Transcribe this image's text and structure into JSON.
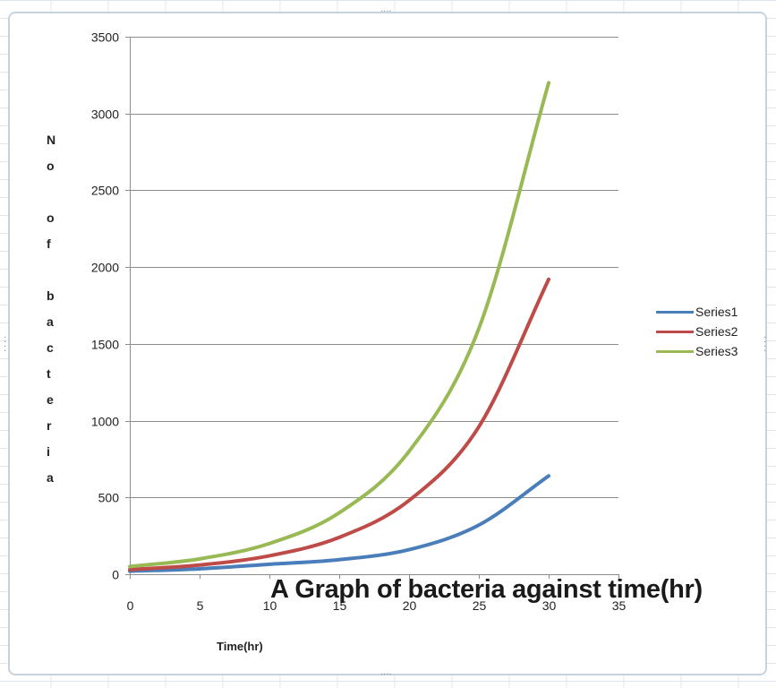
{
  "chart_data": {
    "type": "line",
    "title": "A Graph of bacteria against time(hr)",
    "xlabel": "Time(hr)",
    "ylabel": "No of bacteria",
    "xlim": [
      0,
      35
    ],
    "ylim": [
      0,
      3500
    ],
    "xticks": [
      "0",
      "5",
      "10",
      "15",
      "20",
      "25",
      "30",
      "35"
    ],
    "yticks": [
      "0",
      "500",
      "1000",
      "1500",
      "2000",
      "2500",
      "3000",
      "3500"
    ],
    "grid": "horizontal",
    "legend_position": "right",
    "x": [
      0,
      5,
      10,
      15,
      20,
      25,
      30
    ],
    "series": [
      {
        "name": "Series1",
        "color": "#4a7ebb",
        "values": [
          20,
          35,
          65,
          95,
          160,
          320,
          640
        ]
      },
      {
        "name": "Series2",
        "color": "#be4b48",
        "values": [
          30,
          60,
          120,
          240,
          480,
          960,
          1920
        ]
      },
      {
        "name": "Series3",
        "color": "#98b954",
        "values": [
          50,
          100,
          200,
          400,
          800,
          1600,
          3200
        ]
      }
    ]
  }
}
